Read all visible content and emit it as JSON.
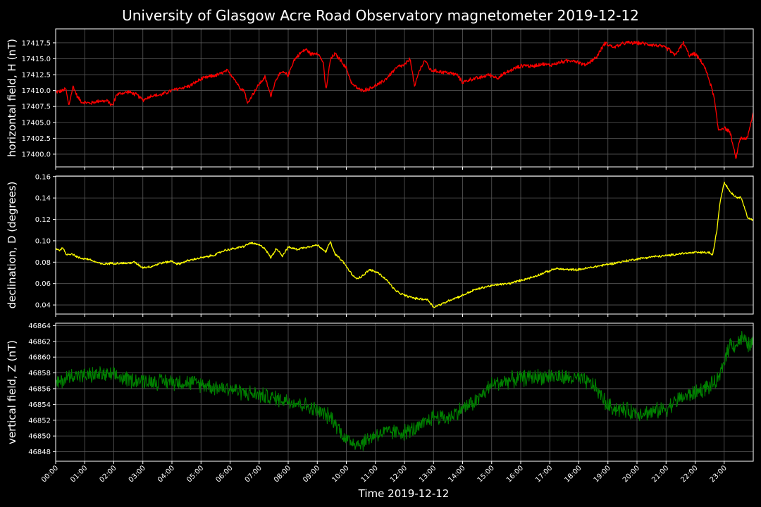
{
  "chart_data": {
    "title": "University of Glasgow Acre Road Observatory magnetometer 2019-12-12",
    "xlabel": "Time 2019-12-12",
    "x_tick_labels": [
      "00:00",
      "01:00",
      "02:00",
      "03:00",
      "04:00",
      "05:00",
      "06:00",
      "07:00",
      "08:00",
      "09:00",
      "10:00",
      "11:00",
      "12:00",
      "13:00",
      "14:00",
      "15:00",
      "16:00",
      "17:00",
      "18:00",
      "19:00",
      "20:00",
      "21:00",
      "22:00",
      "23:00"
    ],
    "x_range_hours": [
      0,
      24
    ],
    "grid": true,
    "background": "#000000",
    "panels": [
      {
        "type": "line",
        "ylabel": "horizontal field, H (nT)",
        "color": "#ff0000",
        "ylim": [
          17398.0,
          17419.7
        ],
        "yticks": [
          "17400.0",
          "17402.5",
          "17405.0",
          "17407.5",
          "17410.0",
          "17412.5",
          "17415.0",
          "17417.5"
        ],
        "noise": 0.35,
        "series": [
          [
            0.0,
            17409.8
          ],
          [
            0.2,
            17409.9
          ],
          [
            0.35,
            17410.3
          ],
          [
            0.45,
            17407.6
          ],
          [
            0.6,
            17410.7
          ],
          [
            0.75,
            17409.0
          ],
          [
            0.9,
            17408.2
          ],
          [
            1.2,
            17408.0
          ],
          [
            1.5,
            17408.4
          ],
          [
            1.8,
            17408.3
          ],
          [
            1.95,
            17407.6
          ],
          [
            2.1,
            17409.4
          ],
          [
            2.5,
            17409.8
          ],
          [
            2.8,
            17409.3
          ],
          [
            3.0,
            17408.5
          ],
          [
            3.3,
            17409.2
          ],
          [
            3.6,
            17409.3
          ],
          [
            4.0,
            17410.0
          ],
          [
            4.3,
            17410.4
          ],
          [
            4.6,
            17410.7
          ],
          [
            5.0,
            17411.8
          ],
          [
            5.3,
            17412.2
          ],
          [
            5.6,
            17412.5
          ],
          [
            5.9,
            17413.1
          ],
          [
            6.1,
            17412.2
          ],
          [
            6.3,
            17410.7
          ],
          [
            6.5,
            17409.9
          ],
          [
            6.6,
            17407.9
          ],
          [
            6.75,
            17409.2
          ],
          [
            7.0,
            17411.0
          ],
          [
            7.2,
            17412.1
          ],
          [
            7.4,
            17409.2
          ],
          [
            7.6,
            17412.0
          ],
          [
            7.8,
            17412.9
          ],
          [
            8.0,
            17412.4
          ],
          [
            8.2,
            17414.8
          ],
          [
            8.4,
            17415.8
          ],
          [
            8.6,
            17416.5
          ],
          [
            8.8,
            17415.7
          ],
          [
            9.0,
            17416.0
          ],
          [
            9.2,
            17414.5
          ],
          [
            9.3,
            17410.0
          ],
          [
            9.45,
            17414.8
          ],
          [
            9.6,
            17415.8
          ],
          [
            9.8,
            17414.8
          ],
          [
            10.0,
            17413.5
          ],
          [
            10.2,
            17411.0
          ],
          [
            10.5,
            17410.0
          ],
          [
            10.8,
            17410.3
          ],
          [
            11.0,
            17410.8
          ],
          [
            11.2,
            17411.2
          ],
          [
            11.4,
            17412.0
          ],
          [
            11.6,
            17413.0
          ],
          [
            11.8,
            17413.8
          ],
          [
            12.0,
            17414.0
          ],
          [
            12.2,
            17415.0
          ],
          [
            12.35,
            17410.5
          ],
          [
            12.5,
            17413.0
          ],
          [
            12.7,
            17414.8
          ],
          [
            12.9,
            17413.2
          ],
          [
            13.2,
            17413.0
          ],
          [
            13.5,
            17412.8
          ],
          [
            13.8,
            17412.5
          ],
          [
            14.0,
            17411.3
          ],
          [
            14.3,
            17411.8
          ],
          [
            14.6,
            17412.0
          ],
          [
            14.9,
            17412.5
          ],
          [
            15.2,
            17412.0
          ],
          [
            15.5,
            17412.8
          ],
          [
            15.8,
            17413.5
          ],
          [
            16.1,
            17414.0
          ],
          [
            16.4,
            17413.8
          ],
          [
            16.7,
            17414.2
          ],
          [
            17.0,
            17414.0
          ],
          [
            17.4,
            17414.5
          ],
          [
            17.8,
            17414.8
          ],
          [
            18.2,
            17414.0
          ],
          [
            18.6,
            17415.2
          ],
          [
            18.9,
            17417.5
          ],
          [
            19.2,
            17416.8
          ],
          [
            19.6,
            17417.5
          ],
          [
            20.0,
            17417.5
          ],
          [
            20.4,
            17417.3
          ],
          [
            20.8,
            17417.0
          ],
          [
            21.1,
            17416.5
          ],
          [
            21.3,
            17415.5
          ],
          [
            21.6,
            17417.5
          ],
          [
            21.8,
            17415.5
          ],
          [
            22.0,
            17415.8
          ],
          [
            22.3,
            17414.0
          ],
          [
            22.5,
            17411.5
          ],
          [
            22.65,
            17409.0
          ],
          [
            22.8,
            17403.8
          ],
          [
            23.0,
            17404.2
          ],
          [
            23.2,
            17403.5
          ],
          [
            23.4,
            17399.3
          ],
          [
            23.55,
            17402.5
          ],
          [
            23.8,
            17402.5
          ],
          [
            24.0,
            17406.5
          ]
        ]
      },
      {
        "type": "line",
        "ylabel": "declination, D (degrees)",
        "color": "#ffff00",
        "ylim": [
          0.0315,
          0.1605
        ],
        "yticks": [
          "0.04",
          "0.06",
          "0.08",
          "0.10",
          "0.12",
          "0.14",
          "0.16"
        ],
        "noise": 0.0012,
        "series": [
          [
            0.0,
            0.093
          ],
          [
            0.15,
            0.091
          ],
          [
            0.25,
            0.094
          ],
          [
            0.35,
            0.087
          ],
          [
            0.55,
            0.088
          ],
          [
            0.8,
            0.084
          ],
          [
            1.1,
            0.083
          ],
          [
            1.4,
            0.08
          ],
          [
            1.6,
            0.078
          ],
          [
            1.9,
            0.079
          ],
          [
            2.2,
            0.079
          ],
          [
            2.5,
            0.079
          ],
          [
            2.7,
            0.08
          ],
          [
            3.0,
            0.075
          ],
          [
            3.3,
            0.076
          ],
          [
            3.6,
            0.079
          ],
          [
            4.0,
            0.081
          ],
          [
            4.2,
            0.078
          ],
          [
            4.5,
            0.081
          ],
          [
            4.8,
            0.083
          ],
          [
            5.2,
            0.085
          ],
          [
            5.5,
            0.087
          ],
          [
            5.8,
            0.091
          ],
          [
            6.2,
            0.093
          ],
          [
            6.5,
            0.095
          ],
          [
            6.7,
            0.098
          ],
          [
            7.0,
            0.096
          ],
          [
            7.2,
            0.093
          ],
          [
            7.4,
            0.084
          ],
          [
            7.6,
            0.093
          ],
          [
            7.8,
            0.086
          ],
          [
            8.0,
            0.094
          ],
          [
            8.3,
            0.092
          ],
          [
            8.6,
            0.094
          ],
          [
            9.0,
            0.096
          ],
          [
            9.3,
            0.09
          ],
          [
            9.45,
            0.099
          ],
          [
            9.6,
            0.088
          ],
          [
            9.9,
            0.08
          ],
          [
            10.1,
            0.072
          ],
          [
            10.3,
            0.065
          ],
          [
            10.5,
            0.066
          ],
          [
            10.8,
            0.073
          ],
          [
            11.1,
            0.07
          ],
          [
            11.4,
            0.063
          ],
          [
            11.7,
            0.053
          ],
          [
            12.0,
            0.049
          ],
          [
            12.4,
            0.046
          ],
          [
            12.8,
            0.045
          ],
          [
            13.0,
            0.038
          ],
          [
            13.3,
            0.041
          ],
          [
            13.6,
            0.045
          ],
          [
            14.0,
            0.049
          ],
          [
            14.4,
            0.054
          ],
          [
            14.8,
            0.057
          ],
          [
            15.2,
            0.059
          ],
          [
            15.6,
            0.06
          ],
          [
            16.0,
            0.063
          ],
          [
            16.4,
            0.066
          ],
          [
            16.8,
            0.07
          ],
          [
            17.2,
            0.074
          ],
          [
            17.6,
            0.073
          ],
          [
            18.0,
            0.073
          ],
          [
            18.4,
            0.075
          ],
          [
            18.8,
            0.077
          ],
          [
            19.2,
            0.079
          ],
          [
            19.6,
            0.081
          ],
          [
            20.0,
            0.083
          ],
          [
            20.5,
            0.085
          ],
          [
            21.0,
            0.086
          ],
          [
            21.5,
            0.088
          ],
          [
            22.0,
            0.089
          ],
          [
            22.5,
            0.089
          ],
          [
            22.6,
            0.086
          ],
          [
            22.75,
            0.11
          ],
          [
            22.85,
            0.135
          ],
          [
            23.0,
            0.155
          ],
          [
            23.2,
            0.146
          ],
          [
            23.4,
            0.141
          ],
          [
            23.6,
            0.14
          ],
          [
            23.8,
            0.122
          ],
          [
            24.0,
            0.119
          ]
        ]
      },
      {
        "type": "line",
        "ylabel": "vertical field, Z (nT)",
        "color": "#008000",
        "ylim": [
          46846.8,
          46864.3
        ],
        "yticks": [
          "46848",
          "46850",
          "46852",
          "46854",
          "46856",
          "46858",
          "46860",
          "46862",
          "46864"
        ],
        "noise": 1.2,
        "series": [
          [
            0.0,
            46856.5
          ],
          [
            0.3,
            46857.2
          ],
          [
            0.6,
            46857.8
          ],
          [
            1.0,
            46857.6
          ],
          [
            1.5,
            46857.8
          ],
          [
            2.0,
            46857.6
          ],
          [
            2.5,
            46857.2
          ],
          [
            3.0,
            46857.0
          ],
          [
            3.5,
            46856.9
          ],
          [
            4.0,
            46856.9
          ],
          [
            4.5,
            46856.8
          ],
          [
            5.0,
            46856.6
          ],
          [
            5.5,
            46856.2
          ],
          [
            6.0,
            46856.0
          ],
          [
            6.5,
            46855.5
          ],
          [
            7.0,
            46855.2
          ],
          [
            7.5,
            46854.8
          ],
          [
            8.0,
            46854.5
          ],
          [
            8.5,
            46854.0
          ],
          [
            9.0,
            46853.2
          ],
          [
            9.5,
            46852.3
          ],
          [
            10.0,
            46849.5
          ],
          [
            10.5,
            46849.0
          ],
          [
            11.0,
            46850.2
          ],
          [
            11.5,
            46850.5
          ],
          [
            12.0,
            46850.5
          ],
          [
            12.5,
            46851.0
          ],
          [
            13.0,
            46852.5
          ],
          [
            13.5,
            46852.3
          ],
          [
            14.0,
            46853.5
          ],
          [
            14.5,
            46854.5
          ],
          [
            15.0,
            46856.5
          ],
          [
            15.5,
            46857.0
          ],
          [
            16.0,
            46857.3
          ],
          [
            16.5,
            46857.5
          ],
          [
            17.0,
            46857.6
          ],
          [
            17.5,
            46857.4
          ],
          [
            18.0,
            46857.2
          ],
          [
            18.5,
            46856.5
          ],
          [
            19.0,
            46853.8
          ],
          [
            19.5,
            46853.3
          ],
          [
            20.0,
            46853.0
          ],
          [
            20.5,
            46853.0
          ],
          [
            21.0,
            46853.5
          ],
          [
            21.5,
            46854.8
          ],
          [
            22.0,
            46855.5
          ],
          [
            22.5,
            46856.3
          ],
          [
            22.8,
            46857.0
          ],
          [
            23.0,
            46859.5
          ],
          [
            23.2,
            46861.8
          ],
          [
            23.4,
            46861.5
          ],
          [
            23.6,
            46862.5
          ],
          [
            23.8,
            46861.5
          ],
          [
            24.0,
            46861.8
          ]
        ]
      }
    ]
  }
}
